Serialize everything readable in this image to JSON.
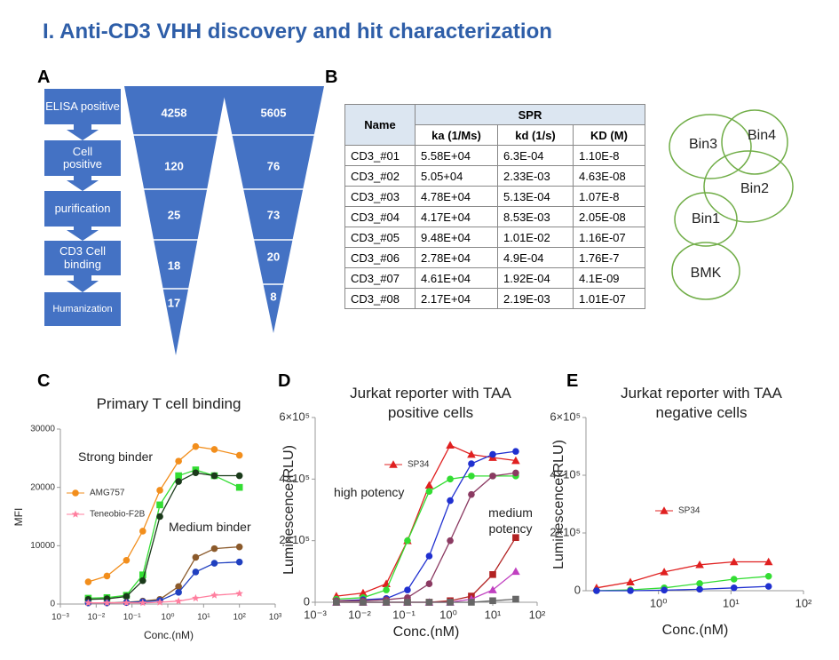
{
  "title": "I. Anti-CD3 VHH discovery and hit characterization",
  "panel_labels": [
    "A",
    "B",
    "C",
    "D",
    "E"
  ],
  "funnel": {
    "steps": [
      "ELISA positive",
      "Cell positive",
      "purification",
      "CD3 Cell binding",
      "Humanization"
    ],
    "set1": [
      "4258",
      "120",
      "25",
      "18",
      "17"
    ],
    "set2": [
      "5605",
      "76",
      "73",
      "20",
      "8"
    ]
  },
  "table": {
    "header": [
      "Name",
      "SPR"
    ],
    "subheader": [
      "ka (1/Ms)",
      "kd (1/s)",
      "KD (M)"
    ],
    "rows": [
      [
        "CD3_#01",
        "5.58E+04",
        "6.3E-04",
        "1.10E-8"
      ],
      [
        "CD3_#02",
        "5.05+04",
        "2.33E-03",
        "4.63E-08"
      ],
      [
        "CD3_#03",
        "4.78E+04",
        "5.13E-04",
        "1.07E-8"
      ],
      [
        "CD3_#04",
        "4.17E+04",
        "8.53E-03",
        "2.05E-08"
      ],
      [
        "CD3_#05",
        "9.48E+04",
        "1.01E-02",
        "1.16E-07"
      ],
      [
        "CD3_#06",
        "2.78E+04",
        "4.9E-04",
        "1.76E-7"
      ],
      [
        "CD3_#07",
        "4.61E+04",
        "1.92E-04",
        "4.1E-09"
      ],
      [
        "CD3_#08",
        "2.17E+04",
        "2.19E-03",
        "1.01E-07"
      ]
    ]
  },
  "bins": [
    "Bin3",
    "Bin4",
    "Bin2",
    "Bin1",
    "BMK"
  ],
  "chart_data": [
    {
      "type": "line",
      "x_scale": "log",
      "title": "Primary T cell binding",
      "xlabel": "Conc.(nM)",
      "ylabel": "MFI",
      "annotations": [
        "Strong binder",
        "Medium binder"
      ],
      "xlim": [
        0.001,
        1000
      ],
      "xticks": [
        {
          "value": 0.001,
          "label": "10⁻³"
        },
        {
          "value": 0.01,
          "label": "10⁻²"
        },
        {
          "value": 0.1,
          "label": "10⁻¹"
        },
        {
          "value": 1,
          "label": "10⁰"
        },
        {
          "value": 10,
          "label": "10¹"
        },
        {
          "value": 100,
          "label": "10²"
        },
        {
          "value": 1000,
          "label": "10³"
        }
      ],
      "ylim": [
        0,
        30000
      ],
      "yticks": [
        0,
        10000,
        20000,
        30000
      ],
      "x": [
        0.006,
        0.02,
        0.07,
        0.2,
        0.6,
        2,
        6,
        20,
        100
      ],
      "series": [
        {
          "name": "AMG757",
          "color": "#f28e1c",
          "marker": "circle",
          "values": [
            3800,
            4800,
            7500,
            12500,
            19500,
            24500,
            27000,
            26500,
            25500
          ]
        },
        {
          "color": "#33dd33",
          "marker": "square",
          "values": [
            1000,
            1100,
            1500,
            5000,
            17000,
            22000,
            23000,
            22000,
            20000
          ]
        },
        {
          "color": "#1a3a1a",
          "marker": "circle",
          "values": [
            800,
            900,
            1300,
            4000,
            15000,
            21000,
            22500,
            22000,
            22000
          ]
        },
        {
          "color": "#8b5a2b",
          "marker": "circle",
          "values": [
            200,
            200,
            300,
            500,
            800,
            3000,
            8000,
            9500,
            9800
          ]
        },
        {
          "color": "#2040c0",
          "marker": "circle",
          "values": [
            200,
            200,
            250,
            400,
            600,
            2000,
            5500,
            7000,
            7200
          ]
        },
        {
          "name": "Teneobio-F2B",
          "color": "#ff7f9f",
          "marker": "star",
          "values": [
            200,
            200,
            200,
            200,
            300,
            500,
            1000,
            1500,
            1800
          ]
        }
      ]
    },
    {
      "type": "line",
      "x_scale": "log",
      "title": "Jurkat reporter with TAA positive cells",
      "xlabel": "Conc.(nM)",
      "ylabel": "Luminescence(RLU)",
      "annotations": [
        "high potency",
        "medium potency"
      ],
      "xlim": [
        0.001,
        100
      ],
      "xticks": [
        {
          "value": 0.001,
          "label": "10⁻³"
        },
        {
          "value": 0.01,
          "label": "10⁻²"
        },
        {
          "value": 0.1,
          "label": "10⁻¹"
        },
        {
          "value": 1,
          "label": "10⁰"
        },
        {
          "value": 10,
          "label": "10¹"
        },
        {
          "value": 100,
          "label": "10²"
        }
      ],
      "ylim": [
        0,
        600000
      ],
      "yticks": [
        0,
        {
          "value": 200000,
          "label": "2×10⁵"
        },
        {
          "value": 400000,
          "label": "4×10⁵"
        },
        {
          "value": 600000,
          "label": "6×10⁵"
        }
      ],
      "x": [
        0.003,
        0.012,
        0.04,
        0.12,
        0.37,
        1.1,
        3.3,
        10,
        33
      ],
      "series": [
        {
          "name": "SP34",
          "color": "#e02020",
          "marker": "triangle",
          "values": [
            20000,
            30000,
            60000,
            200000,
            380000,
            510000,
            480000,
            470000,
            460000
          ]
        },
        {
          "color": "#33dd33",
          "marker": "circle",
          "values": [
            10000,
            15000,
            40000,
            200000,
            360000,
            400000,
            410000,
            410000,
            410000
          ]
        },
        {
          "color": "#2030d0",
          "marker": "circle",
          "values": [
            5000,
            8000,
            12000,
            40000,
            150000,
            330000,
            450000,
            480000,
            490000
          ]
        },
        {
          "color": "#8b3a62",
          "marker": "circle",
          "values": [
            5000,
            5000,
            8000,
            15000,
            60000,
            200000,
            350000,
            410000,
            420000
          ]
        },
        {
          "color": "#b22222",
          "marker": "square",
          "values": [
            0,
            0,
            0,
            0,
            0,
            5000,
            20000,
            90000,
            210000
          ]
        },
        {
          "color": "#c040c0",
          "marker": "triangle",
          "values": [
            0,
            0,
            0,
            0,
            0,
            0,
            10000,
            40000,
            100000
          ]
        },
        {
          "color": "#666666",
          "marker": "square",
          "values": [
            0,
            0,
            0,
            0,
            0,
            0,
            0,
            5000,
            10000
          ]
        }
      ]
    },
    {
      "type": "line",
      "x_scale": "log",
      "title": "Jurkat reporter with TAA negative cells",
      "xlabel": "Conc.(nM)",
      "ylabel": "Luminescence(RLU)",
      "xlim": [
        0.1,
        100
      ],
      "xticks": [
        {
          "value": 1,
          "label": "10⁰"
        },
        {
          "value": 10,
          "label": "10¹"
        },
        {
          "value": 100,
          "label": "10²"
        }
      ],
      "ylim": [
        0,
        600000
      ],
      "yticks": [
        0,
        {
          "value": 200000,
          "label": "2×10⁵"
        },
        {
          "value": 400000,
          "label": "4×10⁵"
        },
        {
          "value": 600000,
          "label": "6×10⁵"
        }
      ],
      "x": [
        0.14,
        0.41,
        1.2,
        3.7,
        11,
        33
      ],
      "series": [
        {
          "name": "SP34",
          "color": "#e02020",
          "marker": "triangle",
          "values": [
            10000,
            30000,
            65000,
            90000,
            100000,
            100000
          ]
        },
        {
          "color": "#33dd33",
          "marker": "circle",
          "values": [
            0,
            3000,
            10000,
            25000,
            40000,
            50000
          ]
        },
        {
          "color": "#2030d0",
          "marker": "circle",
          "values": [
            0,
            0,
            2000,
            5000,
            10000,
            15000
          ]
        }
      ]
    }
  ]
}
